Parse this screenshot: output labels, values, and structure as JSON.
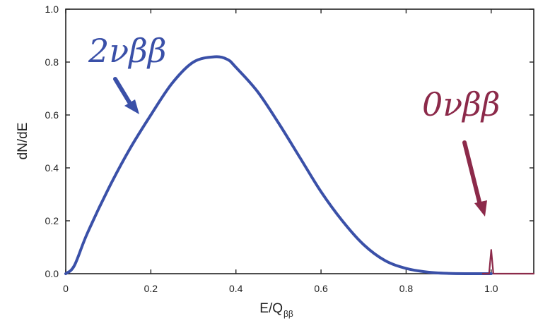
{
  "chart_data": {
    "type": "line",
    "title": "",
    "xlabel": "E/Q",
    "xlabel_subscript": "ββ",
    "ylabel": "dN/dE",
    "xlim": [
      0,
      1.1
    ],
    "ylim": [
      0,
      1.0
    ],
    "xticks": [
      0,
      0.2,
      0.4,
      0.6,
      0.8,
      1.0
    ],
    "xtick_labels": [
      "0",
      "0.2",
      "0.4",
      "0.6",
      "0.8",
      "1.0"
    ],
    "yticks": [
      0,
      0.2,
      0.4,
      0.6,
      0.8,
      1.0
    ],
    "ytick_labels": [
      "0.0",
      "0.2",
      "0.4",
      "0.6",
      "0.8",
      "1.0"
    ],
    "grid": false,
    "series": [
      {
        "color": "#3a50a8",
        "x": [
          0.0,
          0.02,
          0.05,
          0.1,
          0.15,
          0.2,
          0.25,
          0.3,
          0.35,
          0.38,
          0.4,
          0.45,
          0.5,
          0.55,
          0.6,
          0.65,
          0.7,
          0.75,
          0.8,
          0.85,
          0.9,
          0.95,
          1.0
        ],
        "y": [
          0.0,
          0.03,
          0.15,
          0.32,
          0.47,
          0.6,
          0.72,
          0.8,
          0.82,
          0.81,
          0.78,
          0.69,
          0.57,
          0.44,
          0.31,
          0.2,
          0.11,
          0.05,
          0.02,
          0.006,
          0.001,
          0.0,
          0.0
        ]
      },
      {
        "color": "#8c2a4a",
        "x": [
          0.98,
          0.995,
          1.0,
          1.005,
          1.02,
          1.1
        ],
        "y": [
          0.0,
          0.0,
          0.09,
          0.0,
          0.0,
          0.0
        ]
      }
    ],
    "annotations": [
      {
        "text": "2νββ",
        "color": "#3a50a8"
      },
      {
        "text": "0νββ",
        "color": "#8c2a4a"
      }
    ]
  }
}
